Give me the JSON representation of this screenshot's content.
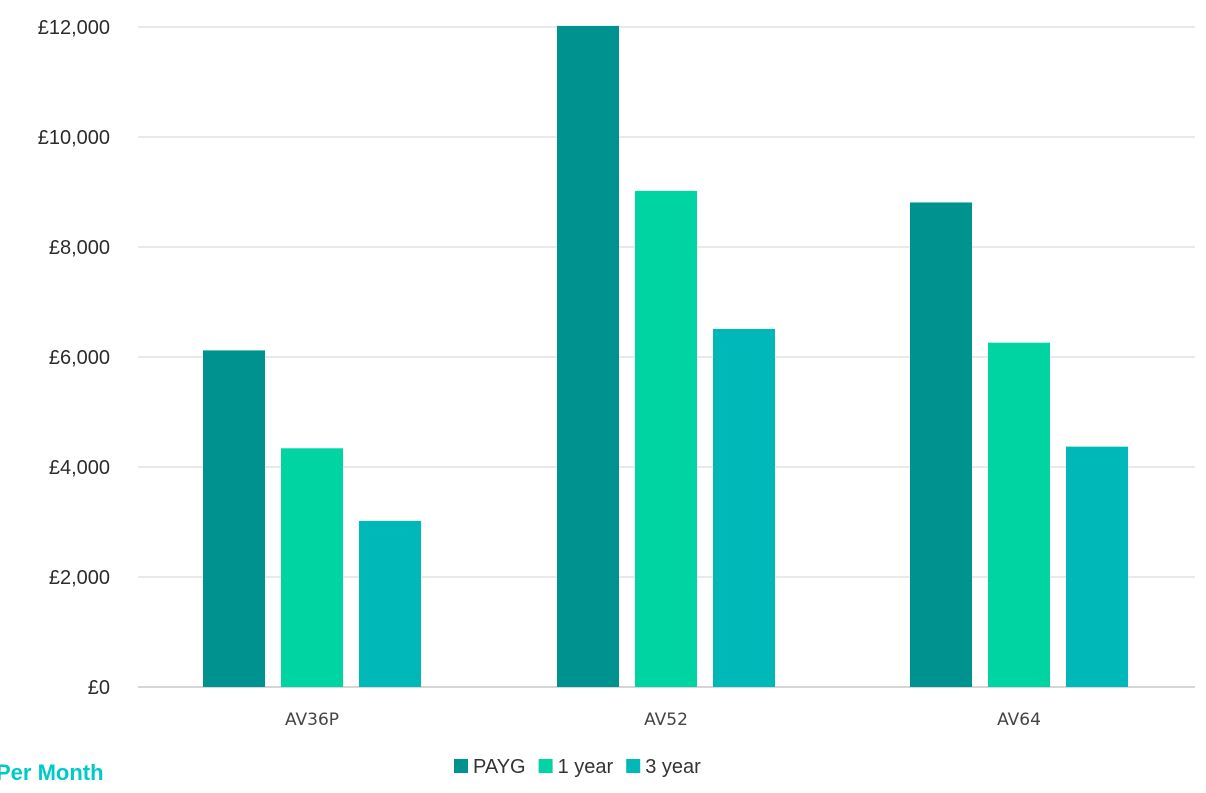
{
  "caption": "Per Month",
  "colors": {
    "background": "#ffffff",
    "grid": "#dcdcdc",
    "axis_text": "#2b2b2b",
    "caption": "#00c9c9"
  },
  "chart_data": {
    "type": "bar",
    "categories": [
      "AV36P",
      "AV52",
      "AV64"
    ],
    "series": [
      {
        "name": "PAYG",
        "color": "#00928f",
        "values": [
          6120,
          12020,
          8810
        ]
      },
      {
        "name": "1 year",
        "color": "#00d4a2",
        "values": [
          4340,
          9020,
          6260
        ]
      },
      {
        "name": "3 year",
        "color": "#00b8b8",
        "values": [
          3020,
          6510,
          4370
        ]
      }
    ],
    "yticks": [
      "£0",
      "£2,000",
      "£4,000",
      "£6,000",
      "£8,000",
      "£10,000",
      "£12,000"
    ],
    "ylim": [
      0,
      12000
    ],
    "ystep": 2000,
    "title": "",
    "xlabel": "",
    "ylabel": "",
    "grid": true,
    "legend_position": "bottom"
  }
}
